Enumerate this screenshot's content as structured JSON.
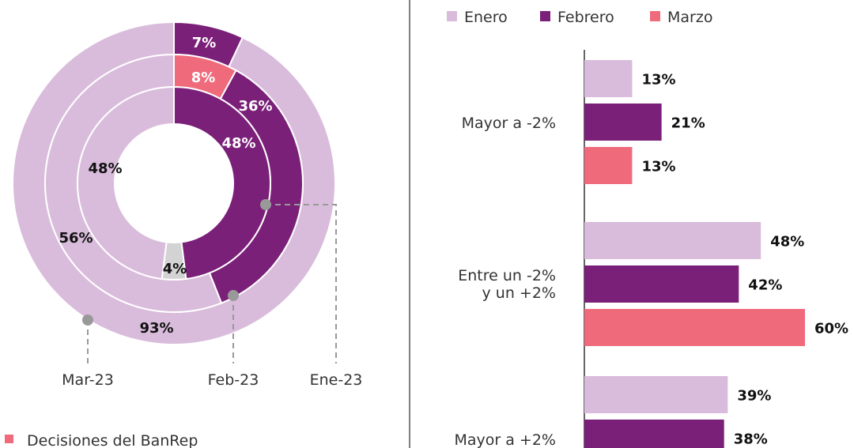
{
  "chart_data": [
    {
      "type": "pie",
      "variant": "nested-donut",
      "start": "top",
      "direction": "clockwise",
      "rings": [
        {
          "name": "Mar-23",
          "position": "outer",
          "slices": [
            {
              "value": 7,
              "label": "7%",
              "color": "#7b2079"
            },
            {
              "value": 93,
              "label": "93%",
              "color": "#d9bcdb"
            }
          ]
        },
        {
          "name": "Feb-23",
          "position": "middle",
          "slices": [
            {
              "value": 8,
              "label": "8%",
              "color": "#ef6b7c"
            },
            {
              "value": 36,
              "label": "36%",
              "color": "#7b2079"
            },
            {
              "value": 56,
              "label": "56%",
              "color": "#d9bcdb"
            }
          ]
        },
        {
          "name": "Ene-23",
          "position": "inner",
          "slices": [
            {
              "value": 48,
              "label": "48%",
              "color": "#7b2079"
            },
            {
              "value": 4,
              "label": "4%",
              "color": "#d3d3d3"
            },
            {
              "value": 48,
              "label": "48%",
              "color": "#d9bcdb"
            }
          ]
        }
      ],
      "legend": [
        {
          "label": "Decisiones del BanRep",
          "color": "#ef6b7c"
        }
      ],
      "legend_placement": "bottom-left"
    },
    {
      "type": "bar",
      "orientation": "horizontal",
      "categories": [
        "Mayor a -2%",
        "Entre un -2%\ny un +2%",
        "Mayor a +2%"
      ],
      "category_lines": [
        [
          "Mayor a -2%"
        ],
        [
          "Entre un -2%",
          "y un +2%"
        ],
        [
          "Mayor a +2%"
        ]
      ],
      "series": [
        {
          "name": "Enero",
          "color": "#d9bcdb",
          "values": [
            13,
            48,
            39
          ]
        },
        {
          "name": "Febrero",
          "color": "#7b2079",
          "values": [
            21,
            42,
            38
          ]
        },
        {
          "name": "Marzo",
          "color": "#ef6b7c",
          "values": [
            13,
            60,
            null
          ]
        }
      ],
      "value_suffix": "%",
      "legend_placement": "top",
      "grid": false
    }
  ]
}
